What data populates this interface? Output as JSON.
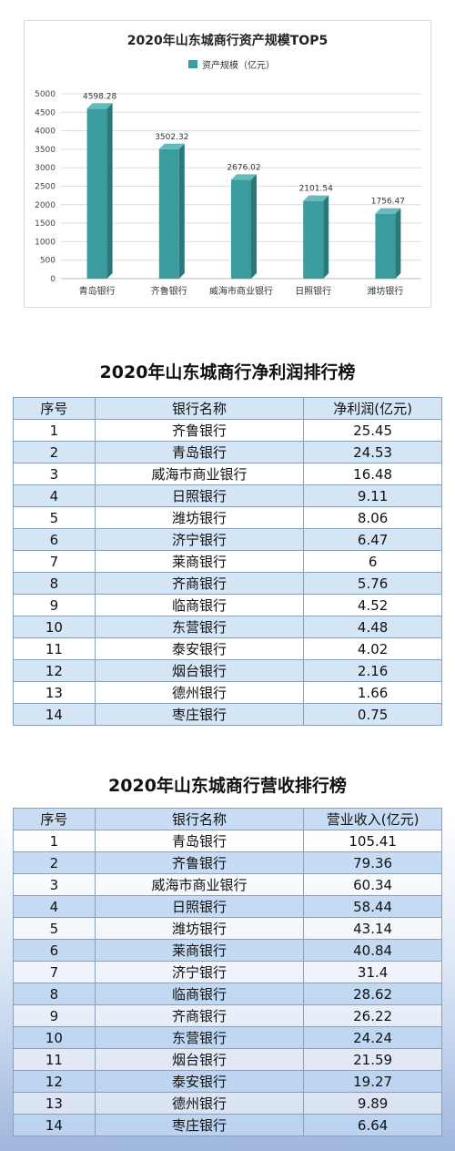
{
  "chart_data": {
    "type": "bar",
    "title": "2020年山东城商行资产规模TOP5",
    "legend": "资产规模（亿元）",
    "categories": [
      "青岛银行",
      "齐鲁银行",
      "威海市商业银行",
      "日照银行",
      "潍坊银行"
    ],
    "values": [
      4598.28,
      3502.32,
      2676.02,
      2101.54,
      1756.47
    ],
    "value_labels": [
      "4598.28",
      "3502.32",
      "2676.02",
      "2101.54",
      "1756.47"
    ],
    "ylim": [
      0,
      5000
    ],
    "yticks": [
      0,
      500,
      1000,
      1500,
      2000,
      2500,
      3000,
      3500,
      4000,
      4500,
      5000
    ],
    "bar_color": "#3a9c9c",
    "legend_placement": "top-left"
  },
  "profit_table": {
    "title": "2020年山东城商行净利润排行榜",
    "headers": [
      "序号",
      "银行名称",
      "净利润(亿元)"
    ],
    "rows": [
      [
        "1",
        "齐鲁银行",
        "25.45"
      ],
      [
        "2",
        "青岛银行",
        "24.53"
      ],
      [
        "3",
        "威海市商业银行",
        "16.48"
      ],
      [
        "4",
        "日照银行",
        "9.11"
      ],
      [
        "5",
        "潍坊银行",
        "8.06"
      ],
      [
        "6",
        "济宁银行",
        "6.47"
      ],
      [
        "7",
        "莱商银行",
        "6"
      ],
      [
        "8",
        "齐商银行",
        "5.76"
      ],
      [
        "9",
        "临商银行",
        "4.52"
      ],
      [
        "10",
        "东营银行",
        "4.48"
      ],
      [
        "11",
        "泰安银行",
        "4.02"
      ],
      [
        "12",
        "烟台银行",
        "2.16"
      ],
      [
        "13",
        "德州银行",
        "1.66"
      ],
      [
        "14",
        "枣庄银行",
        "0.75"
      ]
    ]
  },
  "revenue_table": {
    "title": "2020年山东城商行营收排行榜",
    "headers": [
      "序号",
      "银行名称",
      "营业收入(亿元)"
    ],
    "rows": [
      [
        "1",
        "青岛银行",
        "105.41"
      ],
      [
        "2",
        "齐鲁银行",
        "79.36"
      ],
      [
        "3",
        "威海市商业银行",
        "60.34"
      ],
      [
        "4",
        "日照银行",
        "58.44"
      ],
      [
        "5",
        "潍坊银行",
        "43.14"
      ],
      [
        "6",
        "莱商银行",
        "40.84"
      ],
      [
        "7",
        "济宁银行",
        "31.4"
      ],
      [
        "8",
        "临商银行",
        "28.62"
      ],
      [
        "9",
        "齐商银行",
        "26.22"
      ],
      [
        "10",
        "东营银行",
        "24.24"
      ],
      [
        "11",
        "烟台银行",
        "21.59"
      ],
      [
        "12",
        "泰安银行",
        "19.27"
      ],
      [
        "13",
        "德州银行",
        "9.89"
      ],
      [
        "14",
        "枣庄银行",
        "6.64"
      ]
    ]
  }
}
